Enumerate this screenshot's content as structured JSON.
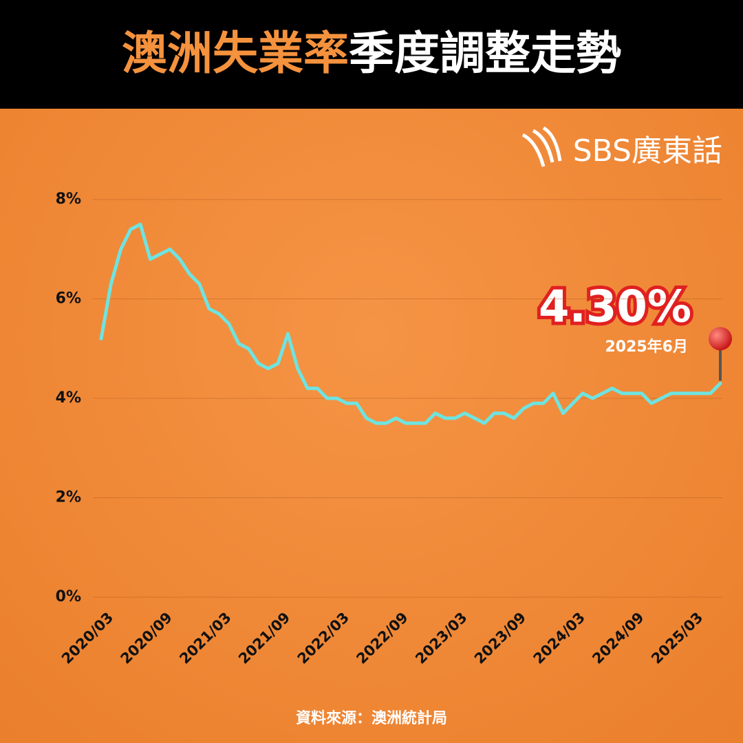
{
  "chart_data": {
    "type": "line",
    "title": [
      "澳洲失業率",
      "季度調整走勢"
    ],
    "logo": "SBS廣東話",
    "source": "資料來源：澳洲統計局",
    "annotation": {
      "value": "4.30%",
      "date": "2025年6月"
    },
    "categories": [
      "2020/03",
      null,
      null,
      null,
      null,
      null,
      "2020/09",
      null,
      null,
      null,
      null,
      null,
      "2021/03",
      null,
      null,
      null,
      null,
      null,
      "2021/09",
      null,
      null,
      null,
      null,
      null,
      "2022/03",
      null,
      null,
      null,
      null,
      null,
      "2022/09",
      null,
      null,
      null,
      null,
      null,
      "2023/03",
      null,
      null,
      null,
      null,
      null,
      "2023/09",
      null,
      null,
      null,
      null,
      null,
      "2024/03",
      null,
      null,
      null,
      null,
      null,
      "2024/09",
      null,
      null,
      null,
      null,
      null,
      "2025/03",
      null,
      null,
      null
    ],
    "values": [
      5.2,
      6.3,
      7.0,
      7.4,
      7.5,
      6.8,
      6.9,
      7.0,
      6.8,
      6.5,
      6.3,
      5.8,
      5.7,
      5.5,
      5.1,
      5.0,
      4.7,
      4.6,
      4.7,
      5.3,
      4.6,
      4.2,
      4.2,
      4.0,
      4.0,
      3.9,
      3.9,
      3.6,
      3.5,
      3.5,
      3.6,
      3.5,
      3.5,
      3.5,
      3.7,
      3.6,
      3.6,
      3.7,
      3.6,
      3.5,
      3.7,
      3.7,
      3.6,
      3.8,
      3.9,
      3.9,
      4.1,
      3.7,
      3.9,
      4.1,
      4.0,
      4.1,
      4.2,
      4.1,
      4.1,
      4.1,
      3.9,
      4.0,
      4.1,
      4.1,
      4.1,
      4.1,
      4.1,
      4.3
    ],
    "color": "#6fe3e0",
    "ylim": [
      0,
      8
    ],
    "yticks": [
      {
        "value": 0,
        "label": "0%"
      },
      {
        "value": 2,
        "label": "2%"
      },
      {
        "value": 4,
        "label": "4%"
      },
      {
        "value": 6,
        "label": "6%"
      },
      {
        "value": 8,
        "label": "8%"
      }
    ],
    "grid": true
  }
}
